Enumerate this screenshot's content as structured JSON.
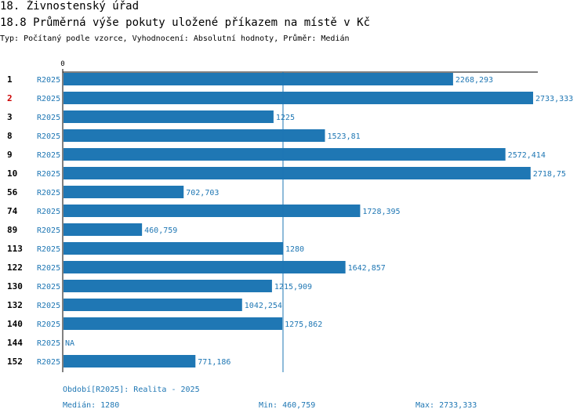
{
  "header": {
    "title": "18. Živnostenský úřad",
    "subtitle": "18.8 Průměrná výše pokuty uložené příkazem na místě v Kč",
    "type_line": "Typ: Počítaný podle vzorce, Vyhodnocení: Absolutní hodnoty, Průměr: Medián"
  },
  "colors": {
    "bar": "#1f77b4",
    "text_blue": "#1f77b4",
    "highlight": "#cc0000",
    "axis": "#000000"
  },
  "chart_data": {
    "type": "bar",
    "orientation": "horizontal",
    "series_label": "R2025",
    "axis_zero_label": "0",
    "xlim": [
      0,
      2733.333
    ],
    "median_line": 1280,
    "rows": [
      {
        "id": "1",
        "value": 2268.293,
        "label": "2268,293",
        "highlight": false
      },
      {
        "id": "2",
        "value": 2733.333,
        "label": "2733,333",
        "highlight": true
      },
      {
        "id": "3",
        "value": 1225,
        "label": "1225",
        "highlight": false
      },
      {
        "id": "8",
        "value": 1523.81,
        "label": "1523,81",
        "highlight": false
      },
      {
        "id": "9",
        "value": 2572.414,
        "label": "2572,414",
        "highlight": false
      },
      {
        "id": "10",
        "value": 2718.75,
        "label": "2718,75",
        "highlight": false
      },
      {
        "id": "56",
        "value": 702.703,
        "label": "702,703",
        "highlight": false
      },
      {
        "id": "74",
        "value": 1728.395,
        "label": "1728,395",
        "highlight": false
      },
      {
        "id": "89",
        "value": 460.759,
        "label": "460,759",
        "highlight": false
      },
      {
        "id": "113",
        "value": 1280,
        "label": "1280",
        "highlight": false
      },
      {
        "id": "122",
        "value": 1642.857,
        "label": "1642,857",
        "highlight": false
      },
      {
        "id": "130",
        "value": 1215.909,
        "label": "1215,909",
        "highlight": false
      },
      {
        "id": "132",
        "value": 1042.254,
        "label": "1042,254",
        "highlight": false
      },
      {
        "id": "140",
        "value": 1275.862,
        "label": "1275,862",
        "highlight": false
      },
      {
        "id": "144",
        "value": null,
        "label": "NA",
        "highlight": false
      },
      {
        "id": "152",
        "value": 771.186,
        "label": "771,186",
        "highlight": false
      }
    ]
  },
  "footer": {
    "period": "Období[R2025]: Realita - 2025",
    "median": "Medián: 1280",
    "min": "Min: 460,759",
    "max": "Max: 2733,333"
  }
}
